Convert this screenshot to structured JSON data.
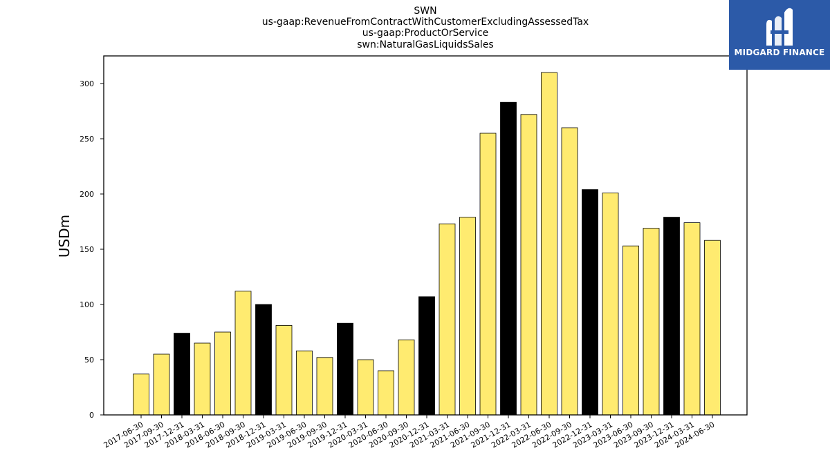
{
  "chart_data": {
    "type": "bar",
    "title_lines": [
      "SWN",
      "us-gaap:RevenueFromContractWithCustomerExcludingAssessedTax",
      "us-gaap:ProductOrService",
      "swn:NaturalGasLiquidsSales"
    ],
    "xlabel": "",
    "ylabel": "USDm",
    "ylim": [
      0,
      325
    ],
    "yticks": [
      0,
      50,
      100,
      150,
      200,
      250,
      300
    ],
    "grid": false,
    "categories": [
      "2017-06-30",
      "2017-09-30",
      "2017-12-31",
      "2018-03-31",
      "2018-06-30",
      "2018-09-30",
      "2018-12-31",
      "2019-03-31",
      "2019-06-30",
      "2019-09-30",
      "2019-12-31",
      "2020-03-31",
      "2020-06-30",
      "2020-09-30",
      "2020-12-31",
      "2021-03-31",
      "2021-06-30",
      "2021-09-30",
      "2021-12-31",
      "2022-03-31",
      "2022-06-30",
      "2022-09-30",
      "2022-12-31",
      "2023-03-31",
      "2023-06-30",
      "2023-09-30",
      "2023-12-31",
      "2024-03-31",
      "2024-06-30"
    ],
    "values": [
      37,
      55,
      74,
      65,
      75,
      112,
      100,
      81,
      58,
      52,
      83,
      50,
      40,
      68,
      107,
      173,
      179,
      255,
      283,
      272,
      310,
      260,
      204,
      201,
      153,
      169,
      179,
      174,
      158
    ],
    "colors": {
      "quarter": "#ffeb70",
      "year_end": "#000000",
      "edge": "#000000"
    }
  },
  "logo": {
    "text": "MIDGARD FINANCE",
    "background": "#2c5aa8"
  }
}
